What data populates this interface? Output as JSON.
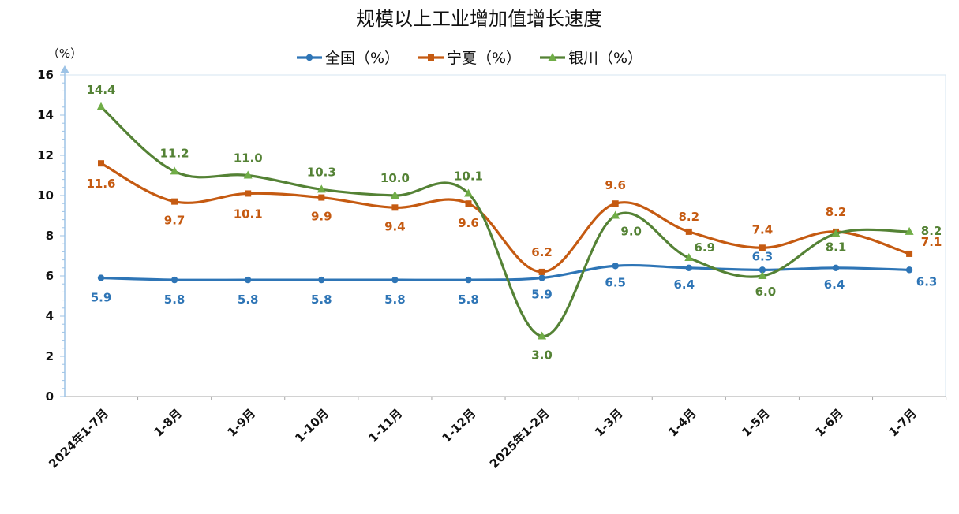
{
  "chart_data": {
    "type": "line",
    "title": "规模以上工业增加值增长速度",
    "yunit": "（%）",
    "ylim": [
      0,
      16
    ],
    "ytick_step": 2,
    "grid": false,
    "legend_placement": "top-center",
    "categories": [
      "2024年1-7月",
      "1-8月",
      "1-9月",
      "1-10月",
      "1-11月",
      "1-12月",
      "2025年1-2月",
      "1-3月",
      "1-4月",
      "1-5月",
      "1-6月",
      "1-7月"
    ],
    "series": [
      {
        "name": "全国（%）",
        "color": "#2E75B6",
        "marker": "circle",
        "values": [
          5.9,
          5.8,
          5.8,
          5.8,
          5.8,
          5.8,
          5.9,
          6.5,
          6.4,
          6.3,
          6.4,
          6.3
        ]
      },
      {
        "name": "宁夏（%）",
        "color": "#C55A11",
        "marker": "square",
        "values": [
          11.6,
          9.7,
          10.1,
          9.9,
          9.4,
          9.6,
          6.2,
          9.6,
          8.2,
          7.4,
          8.2,
          7.1
        ]
      },
      {
        "name": "银川（%）",
        "color": "#548235",
        "marker": "triangle",
        "values": [
          14.4,
          11.2,
          11.0,
          10.3,
          10.0,
          10.1,
          3.0,
          9.0,
          6.9,
          6.0,
          8.1,
          8.2
        ]
      }
    ]
  }
}
